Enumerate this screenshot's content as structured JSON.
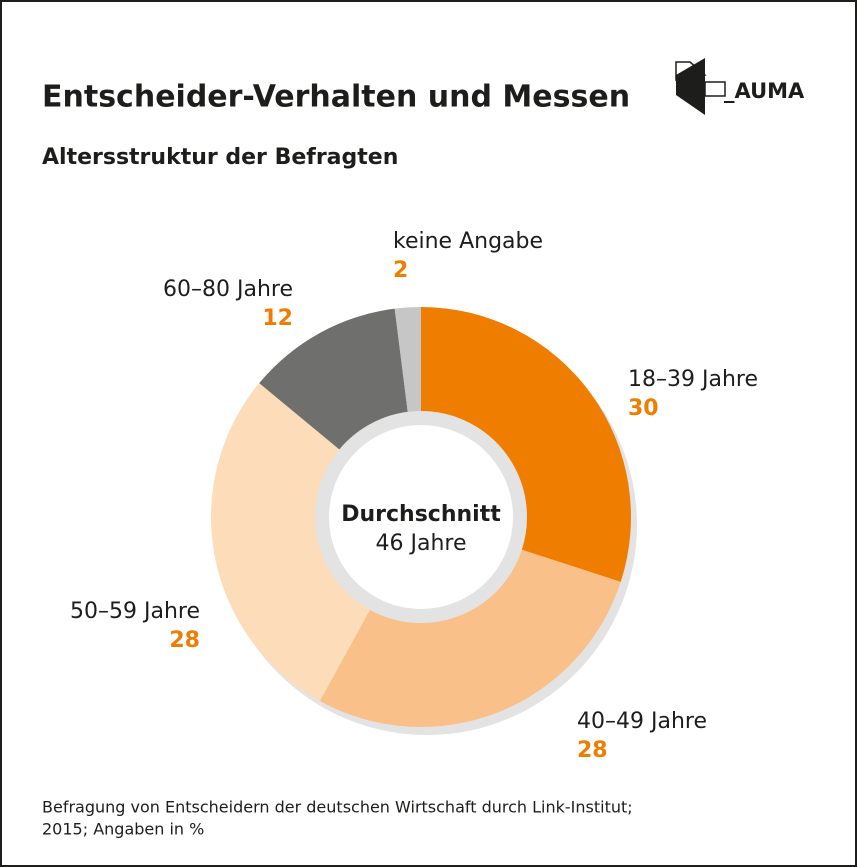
{
  "chart_data": {
    "type": "donut",
    "title": "Entscheider-Verhalten und Messen",
    "subtitle": "Altersstruktur der Befragten",
    "logo": "_AUMA",
    "center_label": [
      "Durchschnitt",
      "46 Jahre"
    ],
    "categories": [
      "18–39 Jahre",
      "40–49 Jahre",
      "50–59 Jahre",
      "60–80 Jahre",
      "keine Angabe"
    ],
    "values": [
      30,
      28,
      28,
      12,
      2
    ],
    "colors": [
      "#ef7d00",
      "#f9c08a",
      "#fcdcb9",
      "#6f6f6e",
      "#c6c6c6"
    ],
    "footnote": [
      "Befragung von Entscheidern der deutschen Wirtschaft durch Link-Institut;",
      "2015; Angaben in %"
    ]
  }
}
